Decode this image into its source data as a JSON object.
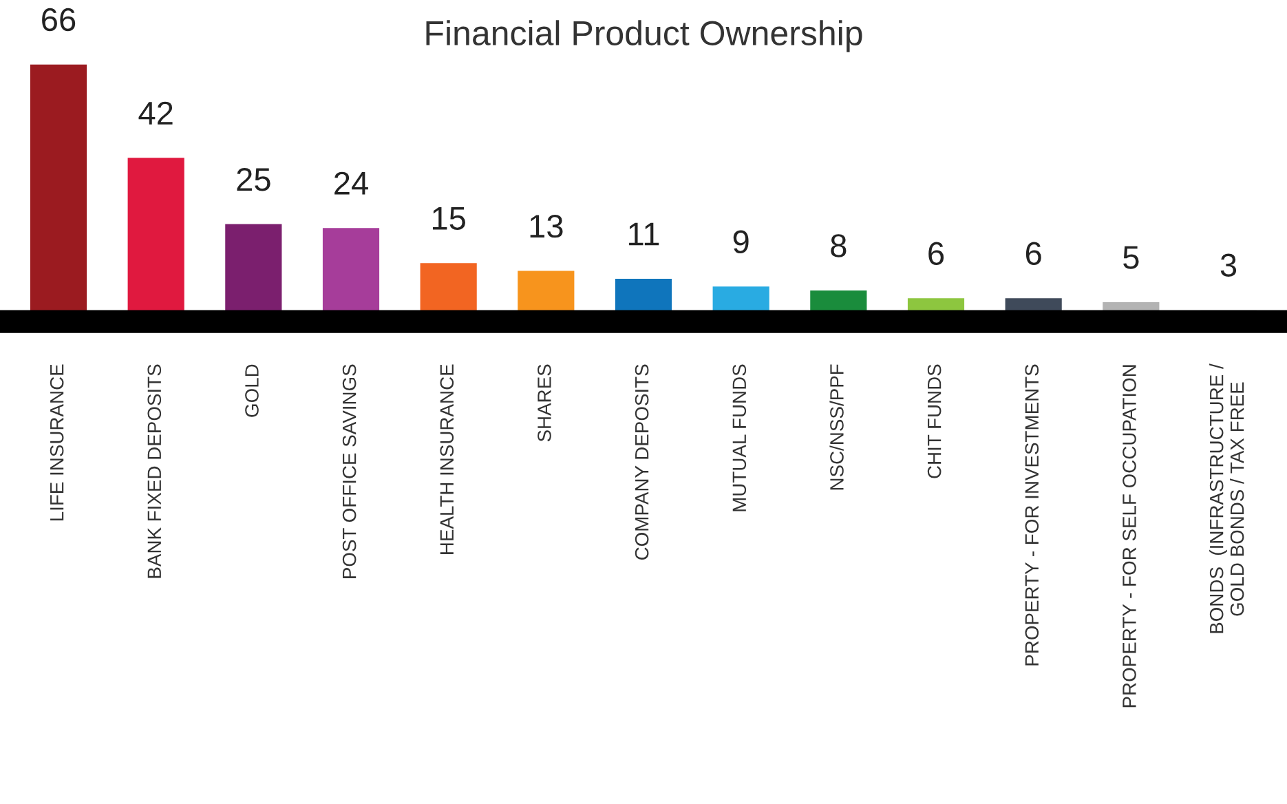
{
  "chart_data": {
    "type": "bar",
    "title": "Financial Product Ownership",
    "categories": [
      "LIFE INSURANCE",
      "BANK FIXED DEPOSITS",
      "GOLD",
      "POST OFFICE SAVINGS",
      "HEALTH INSURANCE",
      "SHARES",
      "COMPANY DEPOSITS",
      "MUTUAL FUNDS",
      "NSC/NSS/PPF",
      "CHIT FUNDS",
      "PROPERTY - FOR INVESTMENTS",
      "PROPERTY - FOR SELF OCCUPATION",
      "BONDS  (INFRASTRUCTURE /\nGOLD BONDS / TAX FREE"
    ],
    "values": [
      66,
      42,
      25,
      24,
      15,
      13,
      11,
      9,
      8,
      6,
      6,
      5,
      3
    ],
    "colors": [
      "#9b1b20",
      "#e0193f",
      "#7b1f6e",
      "#a63d9a",
      "#f26522",
      "#f7941d",
      "#0f75bc",
      "#29abe2",
      "#1a8c3c",
      "#8dc63f",
      "#3f4a5a",
      "#b3b3b3",
      "#e6e6e6"
    ],
    "data_labels": true,
    "grid": false,
    "legend": false
  }
}
